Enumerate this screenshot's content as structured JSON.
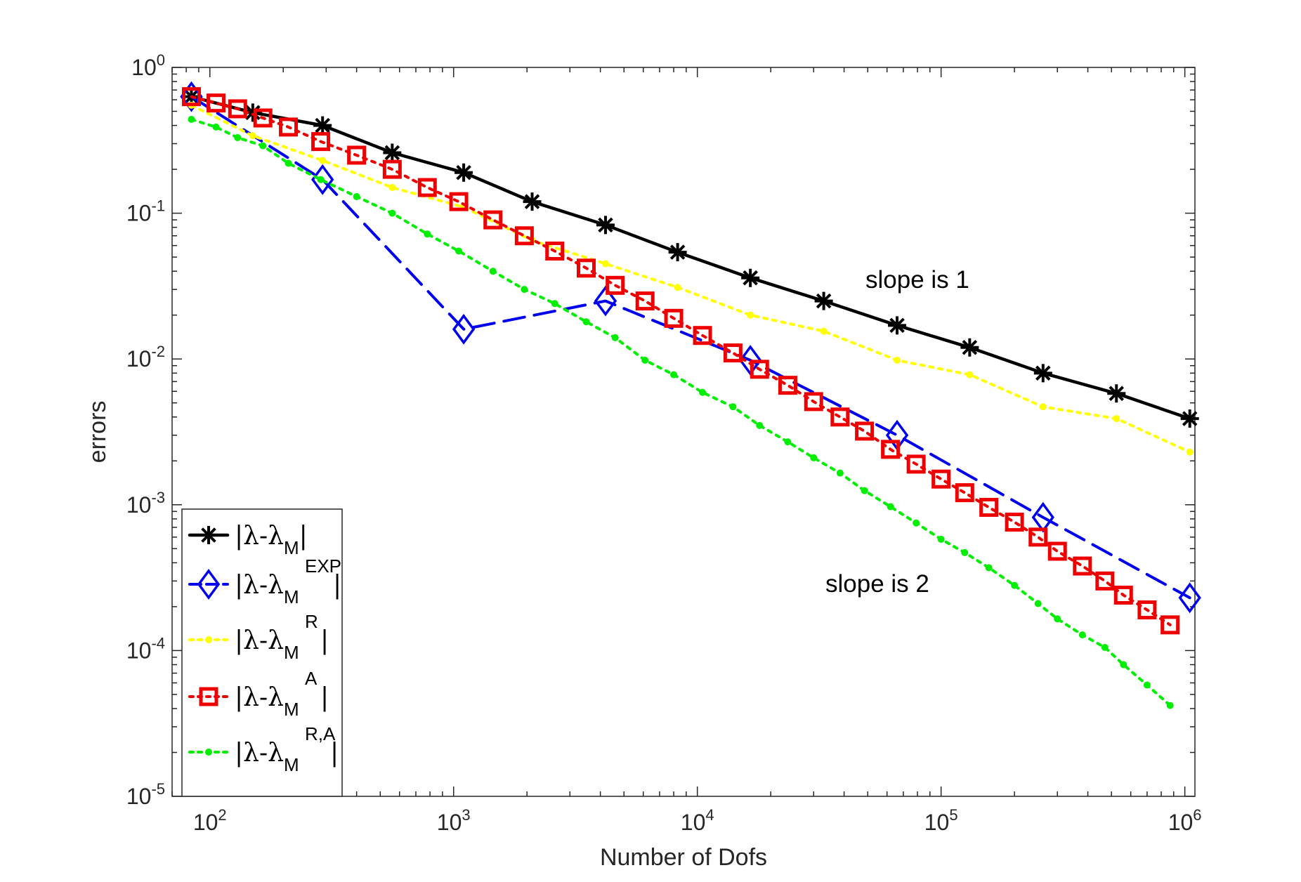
{
  "chart_data": {
    "type": "line",
    "xscale": "log",
    "yscale": "log",
    "xlabel": "Number of Dofs",
    "ylabel": "errors",
    "xlim": [
      70,
      1100000
    ],
    "ylim": [
      1e-05,
      1
    ],
    "xticks": [
      {
        "base": "10",
        "exp": "2",
        "value": 100
      },
      {
        "base": "10",
        "exp": "3",
        "value": 1000
      },
      {
        "base": "10",
        "exp": "4",
        "value": 10000
      },
      {
        "base": "10",
        "exp": "5",
        "value": 100000
      },
      {
        "base": "10",
        "exp": "6",
        "value": 1000000
      }
    ],
    "yticks": [
      {
        "base": "10",
        "exp": "0",
        "value": 1
      },
      {
        "base": "10",
        "exp": "-1",
        "value": 0.1
      },
      {
        "base": "10",
        "exp": "-2",
        "value": 0.01
      },
      {
        "base": "10",
        "exp": "-3",
        "value": 0.001
      },
      {
        "base": "10",
        "exp": "-4",
        "value": 0.0001
      },
      {
        "base": "10",
        "exp": "-5",
        "value": 1e-05
      }
    ],
    "annotations": [
      {
        "text": "slope is 1",
        "x": 90000,
        "y": 0.03
      },
      {
        "text": "slope is 2",
        "x": 60000,
        "y": 0.00032
      }
    ],
    "series": [
      {
        "name": "|λ-λ_M|",
        "legend_main": "|λ-λ",
        "legend_sub": "M",
        "legend_sup": "",
        "legend_close": "|",
        "color": "#000000",
        "line": "solid",
        "marker": "star",
        "x": [
          84,
          150,
          290,
          560,
          1100,
          2100,
          4200,
          8300,
          16500,
          33000,
          66000,
          131000,
          262000,
          524000,
          1048000
        ],
        "y": [
          0.63,
          0.49,
          0.4,
          0.26,
          0.19,
          0.12,
          0.083,
          0.054,
          0.036,
          0.025,
          0.017,
          0.012,
          0.008,
          0.0058,
          0.0039
        ]
      },
      {
        "name": "|λ-λ_M^EXP|",
        "legend_main": "|λ-λ",
        "legend_sub": "M",
        "legend_sup": "EXP",
        "legend_close": "|",
        "color": "#0000ee",
        "line": "dashed",
        "marker": "diamond",
        "x": [
          84,
          290,
          1100,
          4200,
          16500,
          66000,
          262000,
          1048000
        ],
        "y": [
          0.63,
          0.17,
          0.016,
          0.025,
          0.0098,
          0.003,
          0.00082,
          0.00023
        ]
      },
      {
        "name": "|λ-λ_M^R|",
        "legend_main": "|λ-λ",
        "legend_sub": "M",
        "legend_sup": "R",
        "legend_close": "|",
        "color": "#ffff00",
        "line": "dotted",
        "marker": "dot",
        "x": [
          84,
          150,
          290,
          560,
          1100,
          2100,
          4200,
          8300,
          16500,
          33000,
          66000,
          131000,
          262000,
          524000,
          1048000
        ],
        "y": [
          0.55,
          0.34,
          0.23,
          0.15,
          0.11,
          0.065,
          0.045,
          0.031,
          0.02,
          0.0155,
          0.0098,
          0.0078,
          0.0047,
          0.0039,
          0.0023
        ]
      },
      {
        "name": "|λ-λ_M^A|",
        "legend_main": "|λ-λ",
        "legend_sub": "M",
        "legend_sup": "A",
        "legend_close": "|",
        "color": "#ee0000",
        "line": "dotted",
        "marker": "square",
        "x": [
          84,
          106,
          130,
          165,
          210,
          285,
          400,
          560,
          780,
          1050,
          1450,
          1950,
          2600,
          3500,
          4600,
          6100,
          8000,
          10500,
          14000,
          18000,
          23500,
          30000,
          38500,
          48500,
          62000,
          79000,
          100000,
          125000,
          157000,
          200000,
          250000,
          300000,
          380000,
          470000,
          560000,
          700000,
          870000
        ],
        "y": [
          0.63,
          0.57,
          0.52,
          0.45,
          0.39,
          0.31,
          0.25,
          0.2,
          0.15,
          0.12,
          0.09,
          0.07,
          0.055,
          0.042,
          0.032,
          0.025,
          0.019,
          0.0145,
          0.011,
          0.0085,
          0.0066,
          0.0051,
          0.004,
          0.0032,
          0.0024,
          0.0019,
          0.0015,
          0.00121,
          0.00096,
          0.00076,
          0.0006,
          0.00048,
          0.00038,
          0.0003,
          0.00024,
          0.00019,
          0.00015
        ]
      },
      {
        "name": "|λ-λ_M^{R,A}|",
        "legend_main": "|λ-λ",
        "legend_sub": "M",
        "legend_sup": "R,A",
        "legend_close": "|",
        "color": "#00ee00",
        "line": "dotted",
        "marker": "dot",
        "x": [
          84,
          106,
          130,
          165,
          210,
          285,
          400,
          560,
          780,
          1050,
          1450,
          1950,
          2600,
          3500,
          4600,
          6100,
          8000,
          10500,
          14000,
          18000,
          23500,
          30000,
          38500,
          48500,
          62000,
          79000,
          100000,
          125000,
          157000,
          200000,
          250000,
          300000,
          380000,
          470000,
          560000,
          700000,
          870000
        ],
        "y": [
          0.44,
          0.39,
          0.33,
          0.29,
          0.22,
          0.17,
          0.13,
          0.1,
          0.072,
          0.055,
          0.04,
          0.03,
          0.024,
          0.018,
          0.014,
          0.0098,
          0.0078,
          0.0059,
          0.0047,
          0.0035,
          0.0027,
          0.0021,
          0.00165,
          0.00125,
          0.00097,
          0.00075,
          0.00058,
          0.00047,
          0.00037,
          0.00028,
          0.00021,
          0.000165,
          0.000128,
          0.000105,
          8e-05,
          5.8e-05,
          4.2e-05
        ]
      }
    ]
  }
}
